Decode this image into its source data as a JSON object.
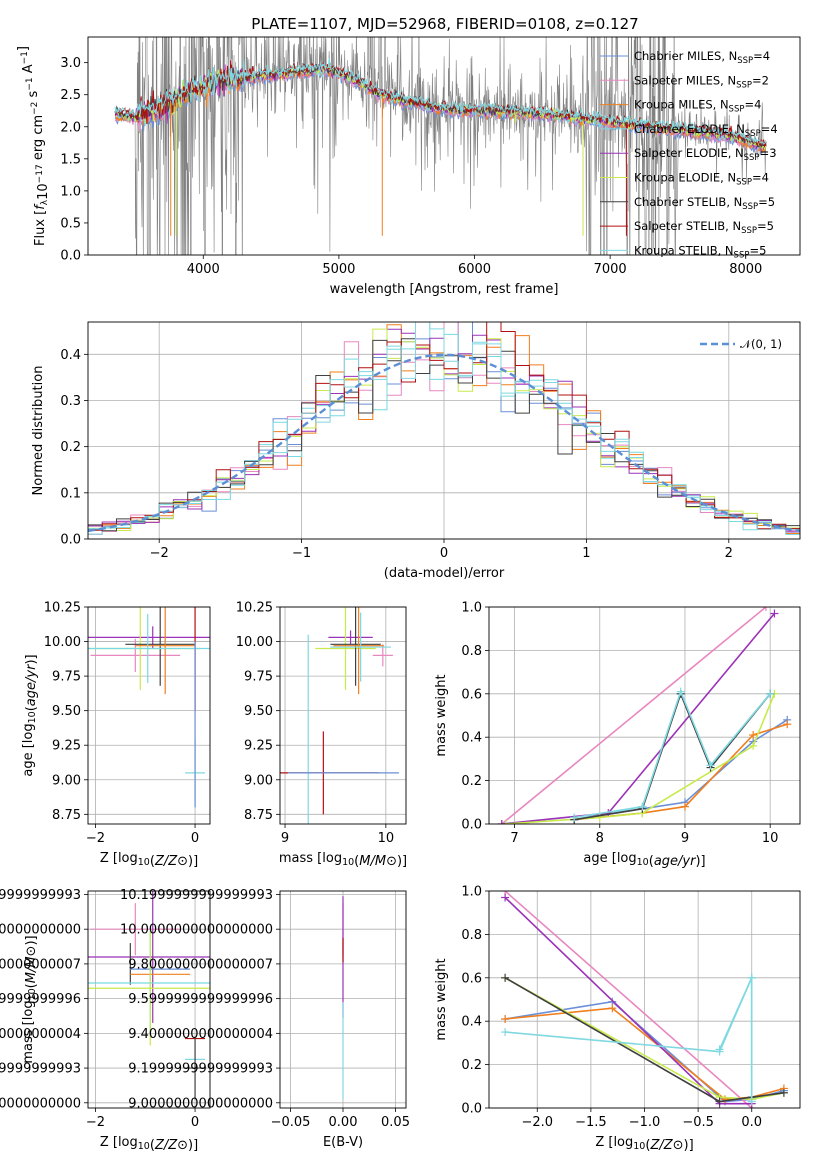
{
  "figure": {
    "title": "PLATE=1107, MJD=52968, FIBERID=0108, z=0.127"
  },
  "colors": {
    "Chabrier MILES": "#6a8fd8",
    "Salpeter MILES": "#e887c0",
    "Kroupa MILES": "#f07f1e",
    "Chabrier ELODIE": "#77d9e3",
    "Salpeter ELODIE": "#9b32b8",
    "Kroupa ELODIE": "#c7ea4c",
    "Chabrier STELIB": "#404040",
    "Salpeter STELIB": "#b21010",
    "Kroupa STELIB": "#80d8e0",
    "data": "#808080",
    "normal": "#5b8fd6",
    "grid": "#b0b0b0"
  },
  "chart_data": [
    {
      "id": "spectrum",
      "type": "line",
      "xlabel": "wavelength [Angstrom, rest frame]",
      "ylabel": "Flux [f_λ 10⁻¹⁷ erg cm⁻² s⁻¹ A⁻¹]",
      "xlim": [
        3150,
        8400
      ],
      "ylim": [
        0,
        3.4
      ],
      "xticks": [
        4000,
        5000,
        6000,
        7000,
        8000
      ],
      "yticks": [
        0.0,
        0.5,
        1.0,
        1.5,
        2.0,
        2.5,
        3.0
      ],
      "grid": false,
      "legend_position": "top-right",
      "legend": [
        {
          "name": "Chabrier MILES",
          "nssp": "N_SSP=4"
        },
        {
          "name": "Salpeter MILES",
          "nssp": "N_SSP=2"
        },
        {
          "name": "Kroupa MILES",
          "nssp": "N_SSP=4"
        },
        {
          "name": "Chabrier ELODIE",
          "nssp": "N_SSP=4"
        },
        {
          "name": "Salpeter ELODIE",
          "nssp": "N_SSP=3"
        },
        {
          "name": "Kroupa ELODIE",
          "nssp": "N_SSP=4"
        },
        {
          "name": "Chabrier STELIB",
          "nssp": "N_SSP=5"
        },
        {
          "name": "Salpeter STELIB",
          "nssp": "N_SSP=5"
        },
        {
          "name": "Kroupa STELIB",
          "nssp": "N_SSP=5"
        }
      ],
      "continuum": {
        "x": [
          3350,
          3500,
          3700,
          3900,
          4100,
          4300,
          4500,
          4700,
          4900,
          5100,
          5300,
          5500,
          5700,
          5900,
          6100,
          6300,
          6500,
          6700,
          6900,
          7100,
          7300,
          7500,
          7700,
          7900,
          8100
        ],
        "y": [
          2.2,
          2.15,
          2.3,
          2.55,
          2.7,
          2.75,
          2.8,
          2.85,
          2.9,
          2.75,
          2.5,
          2.4,
          2.3,
          2.25,
          2.25,
          2.22,
          2.2,
          2.15,
          2.1,
          2.05,
          2.0,
          1.95,
          1.9,
          1.85,
          1.7
        ]
      }
    },
    {
      "id": "residuals",
      "type": "line",
      "xlabel": "(data-model)/error",
      "ylabel": "Normed distribution",
      "xlim": [
        -2.5,
        2.5
      ],
      "ylim": [
        0,
        0.47
      ],
      "xticks": [
        -2,
        -1,
        0,
        1,
        2
      ],
      "yticks": [
        0.0,
        0.1,
        0.2,
        0.3,
        0.4
      ],
      "grid": true,
      "legend_position": "top-right",
      "legend_label": "𝒩(0, 1)"
    },
    {
      "id": "age-vs-Z",
      "type": "scatter",
      "xlabel": "Z [log10(Z/Z⊙)]",
      "ylabel": "age  [log10(age/yr)]",
      "xlim": [
        -2.15,
        0.3
      ],
      "ylim": [
        8.68,
        10.25
      ],
      "xticks": [
        -2,
        0
      ],
      "yticks": [
        8.75,
        9.0,
        9.25,
        9.5,
        9.75,
        10.0,
        10.25
      ],
      "grid": true,
      "errorbars": [
        {
          "series": "Salpeter ELODIE",
          "x": -0.85,
          "xerr": 2.0,
          "y": 10.03,
          "yerr": 0.08
        },
        {
          "series": "Salpeter MILES",
          "x": -1.2,
          "xerr": 0.9,
          "y": 9.9,
          "yerr": 0.12
        },
        {
          "series": "Kroupa ELODIE",
          "x": -1.1,
          "xerr": 1.2,
          "y": 9.95,
          "yerr": 0.3
        },
        {
          "series": "Chabrier STELIB",
          "x": -0.7,
          "xerr": 0.7,
          "y": 9.98,
          "yerr": 0.3
        },
        {
          "series": "Kroupa MILES",
          "x": -0.6,
          "xerr": 0.6,
          "y": 9.97,
          "yerr": 0.35
        },
        {
          "series": "Salpeter STELIB",
          "x": 0.0,
          "xerr": 0.0,
          "y": 9.95,
          "yerr": 0.45
        },
        {
          "series": "Chabrier ELODIE",
          "x": -0.95,
          "xerr": 2.0,
          "y": 9.95,
          "yerr": 0.25
        },
        {
          "series": "Kroupa STELIB",
          "x": 0.0,
          "xerr": 0.2,
          "y": 9.05,
          "yerr": 0.25
        },
        {
          "series": "Chabrier MILES",
          "x": 0.0,
          "xerr": 0.0,
          "y": 9.4,
          "yerr": 0.6
        }
      ]
    },
    {
      "id": "age-vs-mass",
      "type": "scatter",
      "xlabel": "mass [log10(M/M⊙)]",
      "ylabel": "",
      "xlim": [
        8.95,
        10.2
      ],
      "ylim": [
        8.68,
        10.25
      ],
      "xticks": [
        9,
        10
      ],
      "yticks": [
        8.75,
        9.0,
        9.25,
        9.5,
        9.75,
        10.0,
        10.25
      ],
      "grid": true,
      "errorbars": [
        {
          "series": "Salpeter ELODIE",
          "x": 9.65,
          "xerr": 0.22,
          "y": 10.03,
          "yerr": 0.05
        },
        {
          "series": "Salpeter MILES",
          "x": 9.97,
          "xerr": 0.1,
          "y": 9.9,
          "yerr": 0.08
        },
        {
          "series": "Kroupa ELODIE",
          "x": 9.6,
          "xerr": 0.3,
          "y": 9.95,
          "yerr": 0.3
        },
        {
          "series": "Chabrier STELIB",
          "x": 9.7,
          "xerr": 0.25,
          "y": 9.98,
          "yerr": 0.3
        },
        {
          "series": "Kroupa MILES",
          "x": 9.73,
          "xerr": 0.25,
          "y": 9.97,
          "yerr": 0.35
        },
        {
          "series": "Salpeter STELIB",
          "x": 9.38,
          "xerr": 0.55,
          "y": 9.05,
          "yerr": 0.3
        },
        {
          "series": "Chabrier ELODIE",
          "x": 9.75,
          "xerr": 0.3,
          "y": 9.96,
          "yerr": 0.25
        },
        {
          "series": "Kroupa STELIB",
          "x": 9.23,
          "xerr": 0.0,
          "y": 9.35,
          "yerr": 0.7
        },
        {
          "series": "Chabrier MILES",
          "x": 9.58,
          "xerr": 0.55,
          "y": 9.05,
          "yerr": 0.0
        }
      ]
    },
    {
      "id": "mass-weight-vs-age",
      "type": "line",
      "xlabel": "age  [log10(age/yr)]",
      "ylabel": "mass weight",
      "xlim": [
        6.7,
        10.35
      ],
      "ylim": [
        0,
        1.0
      ],
      "xticks": [
        7,
        8,
        9,
        10
      ],
      "yticks": [
        0.0,
        0.2,
        0.4,
        0.6,
        0.8,
        1.0
      ],
      "grid": true,
      "series": [
        {
          "name": "Chabrier MILES",
          "x": [
            7.7,
            8.5,
            9.0,
            9.8,
            10.2
          ],
          "y": [
            0.02,
            0.07,
            0.1,
            0.38,
            0.48
          ]
        },
        {
          "name": "Salpeter MILES",
          "x": [
            6.85,
            9.95
          ],
          "y": [
            0.0,
            1.0
          ]
        },
        {
          "name": "Kroupa MILES",
          "x": [
            7.7,
            8.5,
            9.0,
            9.8,
            10.2
          ],
          "y": [
            0.02,
            0.05,
            0.08,
            0.41,
            0.46
          ]
        },
        {
          "name": "Chabrier ELODIE",
          "x": [
            7.7,
            8.5,
            8.95,
            9.3,
            10.0
          ],
          "y": [
            0.02,
            0.08,
            0.6,
            0.27,
            0.6
          ]
        },
        {
          "name": "Salpeter ELODIE",
          "x": [
            6.85,
            8.1,
            10.05
          ],
          "y": [
            0.0,
            0.05,
            0.97
          ]
        },
        {
          "name": "Kroupa ELODIE",
          "x": [
            6.9,
            8.0,
            8.5,
            9.8,
            10.05
          ],
          "y": [
            0.0,
            0.03,
            0.05,
            0.36,
            0.6
          ]
        },
        {
          "name": "Chabrier STELIB",
          "x": [
            7.7,
            8.5,
            8.95,
            9.3,
            10.0
          ],
          "y": [
            0.02,
            0.07,
            0.6,
            0.26,
            0.6
          ]
        },
        {
          "name": "Kroupa STELIB",
          "x": [
            7.7,
            8.5,
            8.95,
            9.3,
            10.0
          ],
          "y": [
            0.03,
            0.08,
            0.61,
            0.27,
            0.6
          ]
        }
      ]
    },
    {
      "id": "mass-vs-Z",
      "type": "scatter",
      "xlabel": "Z [log10(Z/Z⊙)]",
      "ylabel": "mass [log10(M/M⊙)]",
      "xlim": [
        -2.15,
        0.3
      ],
      "ylim": [
        8.97,
        10.22
      ],
      "xticks": [
        -2,
        0
      ],
      "yticks": [
        9.0,
        9.2,
        9.4,
        9.6,
        9.8,
        10.0,
        10.2
      ],
      "grid": true,
      "errorbars": [
        {
          "series": "Salpeter MILES",
          "x": -1.2,
          "xerr": 0.9,
          "y": 10.0,
          "yerr": 0.15
        },
        {
          "series": "Salpeter ELODIE",
          "x": -0.85,
          "xerr": 2.0,
          "y": 9.84,
          "yerr": 0.38
        },
        {
          "series": "Chabrier STELIB",
          "x": -1.3,
          "xerr": 0.0,
          "y": 9.8,
          "yerr": 0.12
        },
        {
          "series": "Chabrier MILES",
          "x": -0.7,
          "xerr": 0.6,
          "y": 9.77,
          "yerr": 0.0
        },
        {
          "series": "Kroupa MILES",
          "x": -0.7,
          "xerr": 0.6,
          "y": 9.74,
          "yerr": 0.0
        },
        {
          "series": "Chabrier ELODIE",
          "x": -0.9,
          "xerr": 2.0,
          "y": 9.69,
          "yerr": 0.3
        },
        {
          "series": "Kroupa ELODIE",
          "x": -0.9,
          "xerr": 2.0,
          "y": 9.66,
          "yerr": 0.33
        },
        {
          "series": "Salpeter STELIB",
          "x": 0.0,
          "xerr": 0.2,
          "y": 9.37,
          "yerr": 0.0
        },
        {
          "series": "Kroupa STELIB",
          "x": 0.0,
          "xerr": 0.2,
          "y": 9.25,
          "yerr": 0.0
        },
        {
          "series": "Chabrier STELIB",
          "x": 0.0,
          "xerr": 0.2,
          "y": 9.2,
          "yerr": 0.18
        }
      ]
    },
    {
      "id": "mass-vs-ebv",
      "type": "scatter",
      "xlabel": "E(B-V)",
      "ylabel": "",
      "xlim": [
        -0.06,
        0.06
      ],
      "ylim": [
        8.97,
        10.22
      ],
      "xticks": [
        -0.05,
        0.0,
        0.05
      ],
      "yticks": [
        9.0,
        9.2,
        9.4,
        9.6,
        9.8,
        10.0,
        10.2
      ],
      "grid": true,
      "errorbars": [
        {
          "series": "Salpeter MILES",
          "x": 0.0,
          "xerr": 0.0,
          "y": 10.0,
          "yerr": 0.15
        },
        {
          "series": "Salpeter ELODIE",
          "x": 0.0,
          "xerr": 0.0,
          "y": 9.84,
          "yerr": 0.35
        },
        {
          "series": "Salpeter STELIB",
          "x": 0.0,
          "xerr": 0.0,
          "y": 9.88,
          "yerr": 0.07
        },
        {
          "series": "Kroupa STELIB",
          "x": 0.0,
          "xerr": 0.0,
          "y": 9.3,
          "yerr": 0.28
        }
      ]
    },
    {
      "id": "mass-weight-vs-Z",
      "type": "line",
      "xlabel": "Z [log10(Z/Z⊙)]",
      "ylabel": "mass weight",
      "xlim": [
        -2.45,
        0.45
      ],
      "ylim": [
        0,
        1.0
      ],
      "xticks": [
        -2.0,
        -1.5,
        -1.0,
        -0.5,
        0.0
      ],
      "yticks": [
        0.0,
        0.2,
        0.4,
        0.6,
        0.8,
        1.0
      ],
      "grid": true,
      "series": [
        {
          "name": "Chabrier MILES",
          "x": [
            -2.3,
            -1.3,
            -0.25,
            0.0,
            0.3
          ],
          "y": [
            0.41,
            0.49,
            0.03,
            0.04,
            0.08
          ]
        },
        {
          "name": "Salpeter MILES",
          "x": [
            -2.3,
            0.0
          ],
          "y": [
            1.0,
            0.0
          ]
        },
        {
          "name": "Kroupa MILES",
          "x": [
            -2.3,
            -1.3,
            -0.25,
            0.0,
            0.3
          ],
          "y": [
            0.41,
            0.46,
            0.04,
            0.05,
            0.09
          ]
        },
        {
          "name": "Chabrier ELODIE",
          "x": [
            -0.3,
            0.0,
            0.0
          ],
          "y": [
            0.27,
            0.6,
            0.05
          ]
        },
        {
          "name": "Salpeter ELODIE",
          "x": [
            -2.3,
            -0.3,
            0.0
          ],
          "y": [
            0.97,
            0.02,
            0.02
          ]
        },
        {
          "name": "Kroupa ELODIE",
          "x": [
            -2.3,
            -0.3,
            0.0,
            0.3
          ],
          "y": [
            0.6,
            0.05,
            0.04,
            0.07
          ]
        },
        {
          "name": "Chabrier STELIB",
          "x": [
            -2.3,
            -0.3,
            0.0,
            0.3
          ],
          "y": [
            0.6,
            0.03,
            0.05,
            0.07
          ]
        },
        {
          "name": "Kroupa STELIB",
          "x": [
            -2.3,
            -0.3,
            0.0,
            0.0
          ],
          "y": [
            0.35,
            0.26,
            0.6,
            0.03
          ]
        }
      ]
    }
  ]
}
